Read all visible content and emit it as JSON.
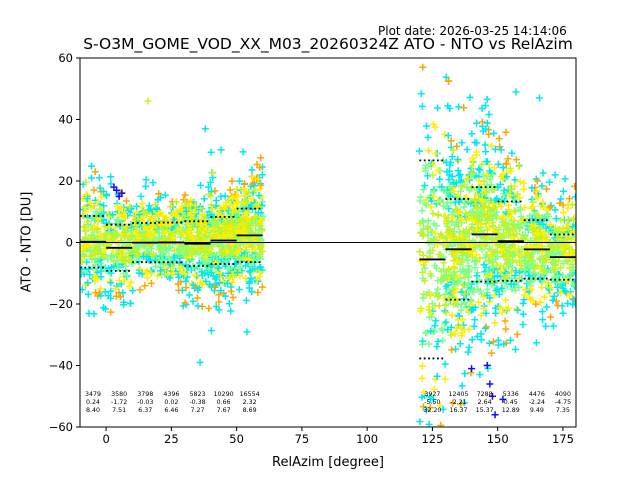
{
  "plot_date": "Plot date: 2026-03-25 14:14:06",
  "chart_data": {
    "type": "scatter",
    "title": "S-O3M_GOME_VOD_XX_M03_20260324Z ATO - NTO vs RelAzim",
    "xlabel": "RelAzim [degree]",
    "ylabel": "ATO - NTO [DU]",
    "xlim": [
      -10,
      180
    ],
    "ylim": [
      -60,
      60
    ],
    "xticks": [
      0,
      25,
      50,
      75,
      100,
      125,
      150,
      175
    ],
    "yticks": [
      -60,
      -40,
      -20,
      0,
      20,
      40,
      60
    ],
    "grid": false,
    "zero_line": 0,
    "colors": {
      "density_low": "#1010ff",
      "density_mid_low": "#00e8f0",
      "density_mid": "#7cff8a",
      "density_mid_high": "#c8f020",
      "density_high": "#ffee00",
      "density_max": "#ffa500",
      "bin_stats": "#000000"
    },
    "bins": [
      {
        "x_start": -10,
        "x_end": 0,
        "count": 3479,
        "mean": 0.24,
        "std": 8.4
      },
      {
        "x_start": 0,
        "x_end": 10,
        "count": 3580,
        "mean": -1.72,
        "std": 7.51
      },
      {
        "x_start": 10,
        "x_end": 20,
        "count": 3798,
        "mean": -0.03,
        "std": 6.37
      },
      {
        "x_start": 20,
        "x_end": 30,
        "count": 4396,
        "mean": 0.02,
        "std": 6.46
      },
      {
        "x_start": 30,
        "x_end": 40,
        "count": 5823,
        "mean": -0.38,
        "std": 7.27
      },
      {
        "x_start": 40,
        "x_end": 50,
        "count": 10290,
        "mean": 0.66,
        "std": 7.67
      },
      {
        "x_start": 50,
        "x_end": 60,
        "count": 16554,
        "mean": 2.32,
        "std": 8.69
      },
      {
        "x_start": 120,
        "x_end": 130,
        "count": 3927,
        "mean": -5.5,
        "std": 32.2
      },
      {
        "x_start": 130,
        "x_end": 140,
        "count": 12405,
        "mean": -2.21,
        "std": 16.37
      },
      {
        "x_start": 140,
        "x_end": 150,
        "count": 7288,
        "mean": 2.64,
        "std": 15.37
      },
      {
        "x_start": 150,
        "x_end": 160,
        "count": 5336,
        "mean": 0.45,
        "std": 12.89
      },
      {
        "x_start": 160,
        "x_end": 170,
        "count": 4476,
        "mean": -2.24,
        "std": 9.49
      },
      {
        "x_start": 170,
        "x_end": 180,
        "count": 4090,
        "mean": -4.75,
        "std": 7.35
      }
    ],
    "outliers": [
      {
        "x": 16,
        "y": 46
      },
      {
        "x": 3,
        "y": 18
      },
      {
        "x": 4,
        "y": 17
      },
      {
        "x": 5,
        "y": 15
      },
      {
        "x": 6,
        "y": 16
      },
      {
        "x": 38,
        "y": 37
      },
      {
        "x": 36,
        "y": -39
      },
      {
        "x": 157,
        "y": 49
      },
      {
        "x": 166,
        "y": 47
      },
      {
        "x": 172,
        "y": 22
      },
      {
        "x": 146,
        "y": -40
      },
      {
        "x": 147,
        "y": -46
      },
      {
        "x": 148,
        "y": -50
      },
      {
        "x": 149,
        "y": -56
      },
      {
        "x": 152,
        "y": -51
      },
      {
        "x": 140,
        "y": -41
      }
    ]
  }
}
